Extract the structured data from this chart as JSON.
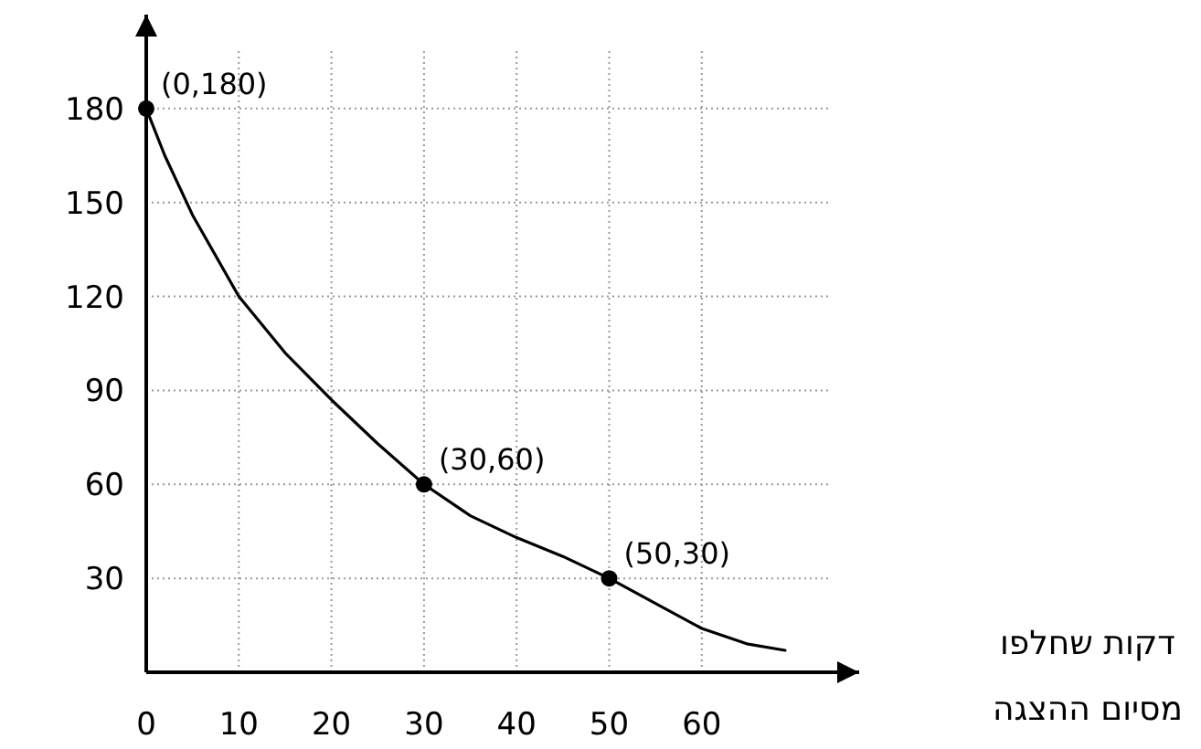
{
  "chart_data": {
    "type": "line",
    "xlabel": "דקות שחלפו\nמסיום ההצגה",
    "xlim": [
      0,
      77
    ],
    "ylim": [
      0,
      210
    ],
    "xticks": [
      0,
      10,
      20,
      30,
      40,
      50,
      60
    ],
    "yticks": [
      30,
      60,
      90,
      120,
      150,
      180
    ],
    "grid": true,
    "series": [
      {
        "color": "#000000",
        "marker": "none",
        "x": [
          0,
          2,
          5,
          10,
          15,
          20,
          25,
          30,
          35,
          40,
          45,
          50,
          55,
          60,
          65,
          69
        ],
        "values": [
          180,
          165,
          146,
          120,
          102,
          87,
          73,
          60,
          50,
          43,
          37,
          30,
          22,
          14,
          9,
          7
        ]
      },
      {
        "type": "scatter",
        "color": "#000000",
        "marker": "circle",
        "x": [
          0,
          30,
          50
        ],
        "values": [
          180,
          60,
          30
        ]
      }
    ],
    "annotations": [
      {
        "text": "(0,180)",
        "x": 0,
        "y": 180
      },
      {
        "text": "(30,60)",
        "x": 30,
        "y": 60
      },
      {
        "text": "(50,30)",
        "x": 50,
        "y": 30
      }
    ]
  }
}
